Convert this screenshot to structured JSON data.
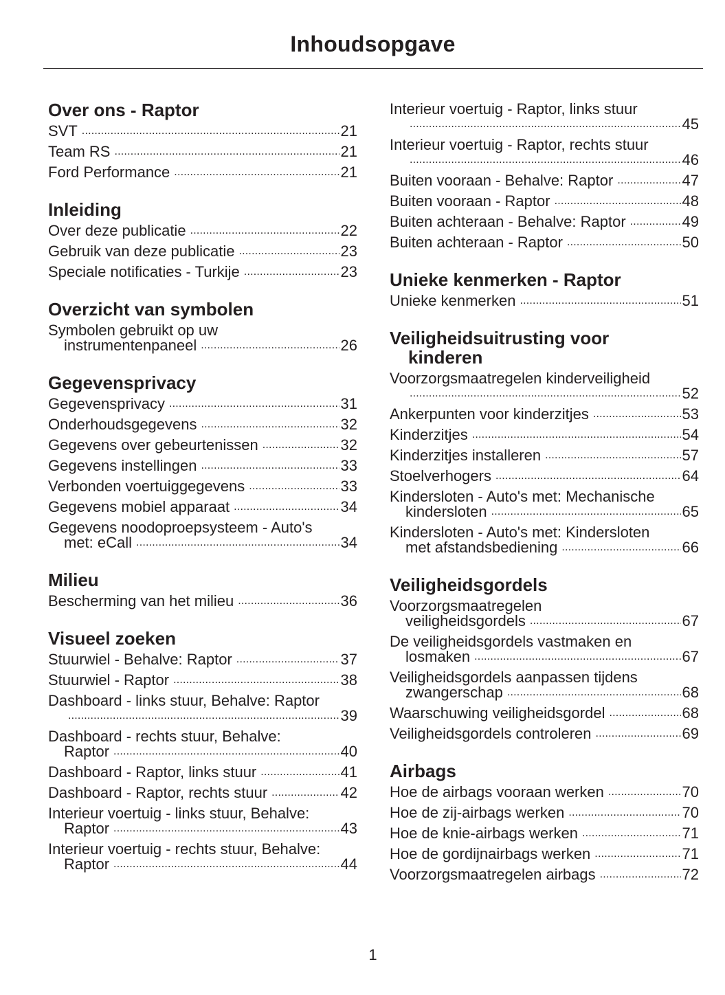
{
  "title": "Inhoudsopgave",
  "page_number": "1",
  "columns": [
    {
      "sections": [
        {
          "title": [
            "Over ons - Raptor"
          ],
          "entries": [
            {
              "lines": [
                "SVT"
              ],
              "page": "21"
            },
            {
              "lines": [
                "Team RS"
              ],
              "page": "21"
            },
            {
              "lines": [
                "Ford Performance"
              ],
              "page": "21"
            }
          ]
        },
        {
          "title": [
            "Inleiding"
          ],
          "entries": [
            {
              "lines": [
                "Over deze publicatie"
              ],
              "page": "22"
            },
            {
              "lines": [
                "Gebruik van deze publicatie"
              ],
              "page": "23"
            },
            {
              "lines": [
                "Speciale notificaties - Turkije"
              ],
              "page": "23"
            }
          ]
        },
        {
          "title": [
            "Overzicht van symbolen"
          ],
          "entries": [
            {
              "lines": [
                "Symbolen gebruikt op uw",
                "instrumentenpaneel"
              ],
              "page": "26"
            }
          ]
        },
        {
          "title": [
            "Gegevensprivacy"
          ],
          "entries": [
            {
              "lines": [
                "Gegevensprivacy"
              ],
              "page": "31"
            },
            {
              "lines": [
                "Onderhoudsgegevens"
              ],
              "page": "32"
            },
            {
              "lines": [
                "Gegevens over gebeurtenissen"
              ],
              "page": "32"
            },
            {
              "lines": [
                "Gegevens instellingen"
              ],
              "page": "33"
            },
            {
              "lines": [
                "Verbonden voertuiggegevens"
              ],
              "page": "33"
            },
            {
              "lines": [
                "Gegevens mobiel apparaat"
              ],
              "page": "34"
            },
            {
              "lines": [
                "Gegevens noodoproepsysteem - Auto's",
                "met: eCall"
              ],
              "page": "34"
            }
          ]
        },
        {
          "title": [
            "Milieu"
          ],
          "entries": [
            {
              "lines": [
                "Bescherming van het milieu"
              ],
              "page": "36"
            }
          ]
        },
        {
          "title": [
            "Visueel zoeken"
          ],
          "entries": [
            {
              "lines": [
                "Stuurwiel - Behalve: Raptor"
              ],
              "page": "37"
            },
            {
              "lines": [
                "Stuurwiel - Raptor"
              ],
              "page": "38"
            },
            {
              "lines": [
                "Dashboard - links stuur, Behalve: Raptor",
                ""
              ],
              "page": "39"
            },
            {
              "lines": [
                "Dashboard - rechts stuur, Behalve:",
                "Raptor"
              ],
              "page": "40"
            },
            {
              "lines": [
                "Dashboard - Raptor, links stuur"
              ],
              "page": "41"
            },
            {
              "lines": [
                "Dashboard - Raptor, rechts stuur"
              ],
              "page": "42"
            },
            {
              "lines": [
                "Interieur voertuig - links stuur, Behalve:",
                "Raptor"
              ],
              "page": "43"
            },
            {
              "lines": [
                "Interieur voertuig - rechts stuur, Behalve:",
                "Raptor"
              ],
              "page": "44"
            }
          ]
        }
      ]
    },
    {
      "sections": [
        {
          "title": [],
          "entries": [
            {
              "lines": [
                "Interieur voertuig - Raptor, links stuur",
                ""
              ],
              "page": "45"
            },
            {
              "lines": [
                "Interieur voertuig - Raptor, rechts stuur",
                ""
              ],
              "page": "46"
            },
            {
              "lines": [
                "Buiten vooraan - Behalve: Raptor"
              ],
              "page": "47"
            },
            {
              "lines": [
                "Buiten vooraan - Raptor"
              ],
              "page": "48"
            },
            {
              "lines": [
                "Buiten achteraan - Behalve: Raptor"
              ],
              "page": "49"
            },
            {
              "lines": [
                "Buiten achteraan - Raptor"
              ],
              "page": "50"
            }
          ]
        },
        {
          "title": [
            "Unieke kenmerken - Raptor"
          ],
          "entries": [
            {
              "lines": [
                "Unieke kenmerken"
              ],
              "page": "51"
            }
          ]
        },
        {
          "title": [
            "Veiligheidsuitrusting voor",
            "kinderen"
          ],
          "entries": [
            {
              "lines": [
                "Voorzorgsmaatregelen kinderveiligheid",
                ""
              ],
              "page": "52"
            },
            {
              "lines": [
                "Ankerpunten voor kinderzitjes"
              ],
              "page": "53"
            },
            {
              "lines": [
                "Kinderzitjes"
              ],
              "page": "54"
            },
            {
              "lines": [
                "Kinderzitjes installeren"
              ],
              "page": "57"
            },
            {
              "lines": [
                "Stoelverhogers"
              ],
              "page": "64"
            },
            {
              "lines": [
                "Kindersloten - Auto's met: Mechanische",
                "kindersloten"
              ],
              "page": "65"
            },
            {
              "lines": [
                "Kindersloten - Auto's met: Kindersloten",
                "met afstandsbediening"
              ],
              "page": "66"
            }
          ]
        },
        {
          "title": [
            "Veiligheidsgordels"
          ],
          "entries": [
            {
              "lines": [
                "Voorzorgsmaatregelen",
                "veiligheidsgordels"
              ],
              "page": "67"
            },
            {
              "lines": [
                "De veiligheidsgordels vastmaken en",
                "losmaken"
              ],
              "page": "67"
            },
            {
              "lines": [
                "Veiligheidsgordels aanpassen tijdens",
                "zwangerschap"
              ],
              "page": "68"
            },
            {
              "lines": [
                "Waarschuwing veiligheidsgordel"
              ],
              "page": "68"
            },
            {
              "lines": [
                "Veiligheidsgordels controleren"
              ],
              "page": "69"
            }
          ]
        },
        {
          "title": [
            "Airbags"
          ],
          "entries": [
            {
              "lines": [
                "Hoe de airbags vooraan werken"
              ],
              "page": "70"
            },
            {
              "lines": [
                "Hoe de zij-airbags werken"
              ],
              "page": "70"
            },
            {
              "lines": [
                "Hoe de knie-airbags werken"
              ],
              "page": "71"
            },
            {
              "lines": [
                "Hoe de gordijnairbags werken"
              ],
              "page": "71"
            },
            {
              "lines": [
                "Voorzorgsmaatregelen airbags"
              ],
              "page": "72"
            }
          ]
        }
      ]
    }
  ]
}
